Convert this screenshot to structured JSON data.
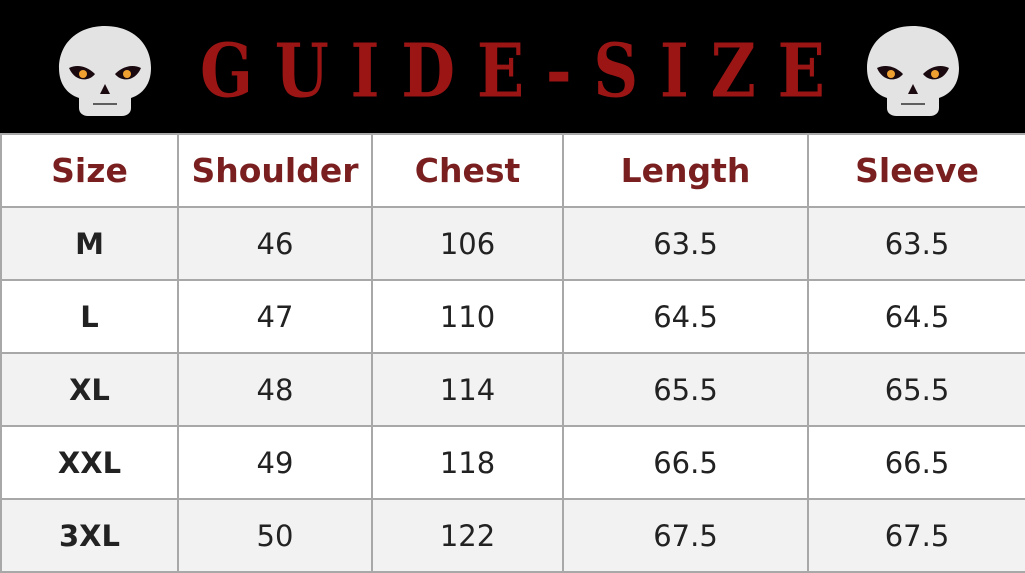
{
  "banner": {
    "title_letters": [
      "G",
      "U",
      "I",
      "D",
      "E",
      "-",
      "S",
      "I",
      "Z",
      "E"
    ],
    "title_color": "#9b1515",
    "icons": [
      "skull-icon",
      "skull-icon"
    ]
  },
  "table": {
    "headers": [
      "Size",
      "Shoulder",
      "Chest",
      "Length",
      "Sleeve"
    ],
    "header_color": "#7a1f1f",
    "rows": [
      [
        "M",
        "46",
        "106",
        "63.5",
        "63.5"
      ],
      [
        "L",
        "47",
        "110",
        "64.5",
        "64.5"
      ],
      [
        "XL",
        "48",
        "114",
        "65.5",
        "65.5"
      ],
      [
        "XXL",
        "49",
        "118",
        "66.5",
        "66.5"
      ],
      [
        "3XL",
        "50",
        "122",
        "67.5",
        "67.5"
      ]
    ]
  }
}
